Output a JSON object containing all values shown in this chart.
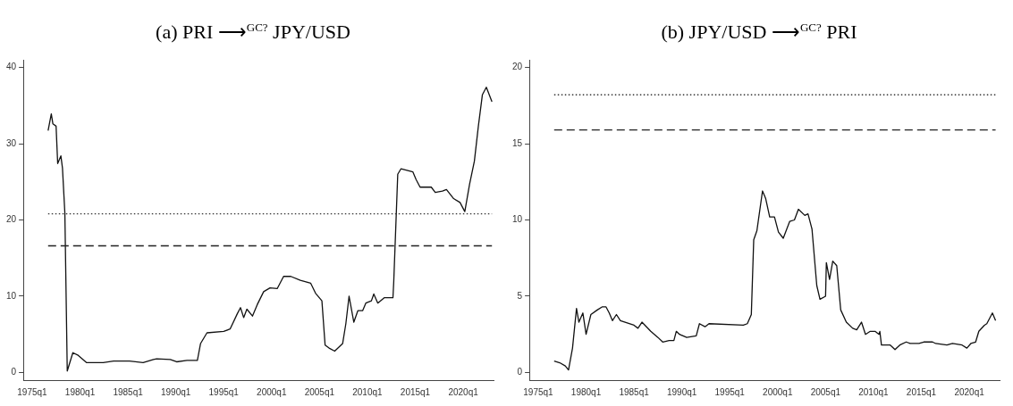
{
  "chart_data": [
    {
      "type": "line",
      "title": "(a) PRI ⟶$^{GC?}$ JPY/USD",
      "grid": false,
      "legend": false,
      "marker": "none",
      "line_style": "solid",
      "xlim": [
        "1974-02",
        "2023-03"
      ],
      "xticks": [
        {
          "value": "1975-01",
          "label": "1975q1"
        },
        {
          "value": "1980-01",
          "label": "1980q1"
        },
        {
          "value": "1985-01",
          "label": "1985q1"
        },
        {
          "value": "1990-01",
          "label": "1990q1"
        },
        {
          "value": "1995-01",
          "label": "1995q1"
        },
        {
          "value": "2000-01",
          "label": "2000q1"
        },
        {
          "value": "2005-01",
          "label": "2005q1"
        },
        {
          "value": "2010-01",
          "label": "2010q1"
        },
        {
          "value": "2015-01",
          "label": "2015q1"
        },
        {
          "value": "2020-01",
          "label": "2020q1"
        }
      ],
      "ylim": [
        -1,
        41
      ],
      "yticks": [
        0,
        10,
        20,
        30,
        40
      ],
      "ref_lines": [
        {
          "axis": "y",
          "value": 20.8,
          "line_style": "dotted",
          "color": "#333333"
        },
        {
          "axis": "y",
          "value": 16.6,
          "line_style": "dashed",
          "color": "#222222"
        }
      ],
      "series": [
        {
          "color": "#111111",
          "x": [
            "1976-09",
            "1977-01",
            "1977-03",
            "1977-07",
            "1977-09",
            "1978-01",
            "1978-03",
            "1978-06",
            "1978-09",
            "1979-04",
            "1979-10",
            "1980-09",
            "1982-06",
            "1983-07",
            "1985-03",
            "1986-08",
            "1987-09",
            "1988-01",
            "1989-06",
            "1990-02",
            "1991-03",
            "1992-04",
            "1992-08",
            "1993-04",
            "1995-01",
            "1995-09",
            "1996-06",
            "1996-10",
            "1997-02",
            "1997-06",
            "1998-01",
            "1998-07",
            "1999-03",
            "1999-11",
            "2000-08",
            "2001-04",
            "2002-01",
            "2003-01",
            "2004-02",
            "2004-08",
            "2005-04",
            "2005-08",
            "2006-01",
            "2006-08",
            "2007-06",
            "2007-10",
            "2008-02",
            "2008-08",
            "2009-01",
            "2009-07",
            "2009-11",
            "2010-06",
            "2010-09",
            "2011-02",
            "2011-10",
            "2012-09",
            "2012-10",
            "2013-03",
            "2013-07",
            "2014-10",
            "2015-02",
            "2015-07",
            "2016-09",
            "2017-02",
            "2017-11",
            "2018-04",
            "2019-01",
            "2019-09",
            "2020-03",
            "2020-09",
            "2021-03",
            "2021-08",
            "2022-01",
            "2022-06",
            "2023-01"
          ],
          "values": [
            31.7,
            33.9,
            32.6,
            32.3,
            27.4,
            28.4,
            26.8,
            20.9,
            0.2,
            2.6,
            2.3,
            1.3,
            1.3,
            1.5,
            1.5,
            1.3,
            1.7,
            1.8,
            1.7,
            1.4,
            1.6,
            1.6,
            3.8,
            5.2,
            5.4,
            5.7,
            7.7,
            8.5,
            7.2,
            8.3,
            7.4,
            8.9,
            10.6,
            11.1,
            11.0,
            12.6,
            12.6,
            12.1,
            11.7,
            10.4,
            9.4,
            3.6,
            3.2,
            2.8,
            3.8,
            6.4,
            10.0,
            6.6,
            8.1,
            8.1,
            9.1,
            9.4,
            10.3,
            9.1,
            9.8,
            9.8,
            11.9,
            26.0,
            26.7,
            26.3,
            25.3,
            24.3,
            24.3,
            23.6,
            23.8,
            24.0,
            22.8,
            22.3,
            21.1,
            24.7,
            27.7,
            32.3,
            36.4,
            37.4,
            35.5
          ]
        }
      ]
    },
    {
      "type": "line",
      "title": "(b) JPY/USD ⟶$^{GC?}$ PRI",
      "grid": false,
      "legend": false,
      "marker": "none",
      "line_style": "solid",
      "xlim": [
        "1974-02",
        "2023-03"
      ],
      "xticks": [
        {
          "value": "1975-01",
          "label": "1975q1"
        },
        {
          "value": "1980-01",
          "label": "1980q1"
        },
        {
          "value": "1985-01",
          "label": "1985q1"
        },
        {
          "value": "1990-01",
          "label": "1990q1"
        },
        {
          "value": "1995-01",
          "label": "1995q1"
        },
        {
          "value": "2000-01",
          "label": "2000q1"
        },
        {
          "value": "2005-01",
          "label": "2005q1"
        },
        {
          "value": "2010-01",
          "label": "2010q1"
        },
        {
          "value": "2015-01",
          "label": "2015q1"
        },
        {
          "value": "2020-01",
          "label": "2020q1"
        }
      ],
      "ylim": [
        -0.5,
        20.5
      ],
      "yticks": [
        0,
        5,
        10,
        15,
        20
      ],
      "ref_lines": [
        {
          "axis": "y",
          "value": 18.2,
          "line_style": "dotted",
          "color": "#333333"
        },
        {
          "axis": "y",
          "value": 15.9,
          "line_style": "dashed",
          "color": "#222222"
        }
      ],
      "series": [
        {
          "color": "#111111",
          "x": [
            "1976-09",
            "1977-04",
            "1977-11",
            "1978-03",
            "1978-08",
            "1979-01",
            "1979-04",
            "1979-09",
            "1980-01",
            "1980-07",
            "1981-03",
            "1981-09",
            "1982-02",
            "1982-06",
            "1982-10",
            "1983-03",
            "1983-08",
            "1985-01",
            "1985-06",
            "1985-11",
            "1986-10",
            "1987-07",
            "1988-01",
            "1988-09",
            "1989-03",
            "1989-06",
            "1989-10",
            "1990-07",
            "1991-07",
            "1991-11",
            "1992-06",
            "1992-11",
            "1996-06",
            "1996-11",
            "1997-04",
            "1997-07",
            "1997-11",
            "1998-06",
            "1998-10",
            "1999-03",
            "1999-09",
            "2000-02",
            "2000-08",
            "2001-04",
            "2001-10",
            "2002-03",
            "2002-11",
            "2003-03",
            "2003-08",
            "2004-02",
            "2004-06",
            "2005-01",
            "2005-02",
            "2005-06",
            "2005-10",
            "2006-03",
            "2006-08",
            "2007-03",
            "2007-11",
            "2008-04",
            "2008-10",
            "2009-03",
            "2009-09",
            "2010-03",
            "2010-08",
            "2010-09",
            "2010-11",
            "2011-10",
            "2012-04",
            "2012-10",
            "2013-06",
            "2013-11",
            "2014-10",
            "2015-04",
            "2016-03",
            "2016-07",
            "2017-09",
            "2018-04",
            "2019-04",
            "2019-10",
            "2020-03",
            "2020-09",
            "2021-01",
            "2021-08",
            "2021-11",
            "2022-06",
            "2022-10"
          ],
          "values": [
            0.75,
            0.64,
            0.43,
            0.17,
            1.6,
            4.2,
            3.3,
            3.9,
            2.5,
            3.8,
            4.1,
            4.3,
            4.3,
            3.9,
            3.4,
            3.8,
            3.4,
            3.1,
            2.9,
            3.3,
            2.7,
            2.3,
            2.0,
            2.1,
            2.1,
            2.7,
            2.5,
            2.3,
            2.4,
            3.2,
            3.0,
            3.2,
            3.1,
            3.2,
            3.8,
            8.7,
            9.3,
            11.9,
            11.4,
            10.2,
            10.2,
            9.2,
            8.8,
            9.9,
            10.0,
            10.7,
            10.3,
            10.4,
            9.4,
            5.7,
            4.8,
            5.0,
            7.2,
            6.1,
            7.3,
            7.0,
            4.1,
            3.3,
            2.9,
            2.8,
            3.3,
            2.5,
            2.7,
            2.7,
            2.5,
            2.7,
            1.8,
            1.8,
            1.5,
            1.8,
            2.0,
            1.9,
            1.9,
            2.0,
            2.0,
            1.9,
            1.8,
            1.9,
            1.8,
            1.6,
            1.9,
            2.0,
            2.7,
            3.1,
            3.2,
            3.9,
            3.4
          ]
        }
      ]
    }
  ]
}
